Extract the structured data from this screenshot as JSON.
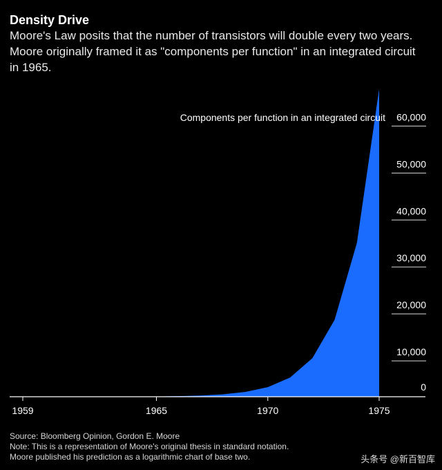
{
  "header": {
    "title": "Density Drive",
    "subtitle": "Moore's Law posits that the number of transistors will double every two years. Moore originally framed it as \"components per function\" in an integrated circuit in 1965."
  },
  "footer": {
    "source": "Source: Bloomberg Opinion, Gordon E. Moore",
    "note_line1": "Note: This is a representation of Moore's original thesis in standard notation.",
    "note_line2": "Moore published his prediction as a logarithmic chart of base two."
  },
  "watermark": "头条号 @新百智库",
  "colors": {
    "background": "#000000",
    "area": "#1a6cff",
    "grid": "#ffffff"
  },
  "chart_data": {
    "type": "area",
    "series_label": "Components per function in an integrated circuit",
    "x": [
      1959,
      1960,
      1961,
      1962,
      1963,
      1964,
      1965,
      1966,
      1967,
      1968,
      1969,
      1970,
      1971,
      1972,
      1973,
      1974,
      1975
    ],
    "values": [
      1,
      2,
      4,
      8,
      16,
      32,
      64,
      128,
      256,
      512,
      1024,
      2048,
      4096,
      8192,
      16384,
      32768,
      65536
    ],
    "xlim": [
      1959,
      1976
    ],
    "ylim": [
      0,
      63000
    ],
    "x_ticks": [
      1959,
      1965,
      1970,
      1975
    ],
    "x_tick_labels": [
      "1959",
      "1965",
      "1970",
      "1975"
    ],
    "y_ticks": [
      0,
      10000,
      20000,
      30000,
      40000,
      50000,
      60000
    ],
    "y_tick_labels": [
      "0",
      "10,000",
      "20,000",
      "30,000",
      "40,000",
      "50,000",
      "60,000"
    ],
    "grid": "horizontal, right side only",
    "y_axis_position": "right"
  }
}
